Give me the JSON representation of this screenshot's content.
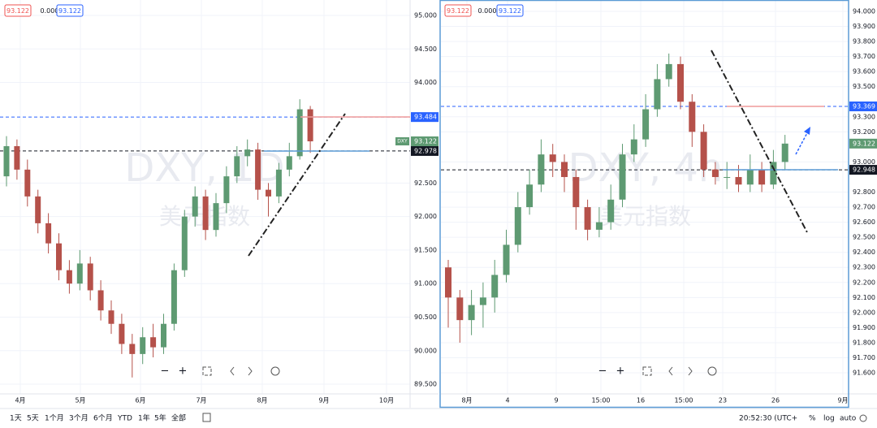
{
  "chart_data": [
    {
      "type": "candlestick",
      "title": "DXY, 1D",
      "subtitle": "美元指数",
      "header": [
        "93.122",
        "0.000",
        "93.122"
      ],
      "xlabels": [
        "4月",
        "5月",
        "6月",
        "7月",
        "8月",
        "9月",
        "10月"
      ],
      "open": [
        92.6,
        93.05,
        92.7,
        92.3,
        91.9,
        91.6,
        91.2,
        91.0,
        91.3,
        90.9,
        90.6,
        90.4,
        90.1,
        89.95,
        90.2,
        90.05,
        90.4,
        91.2,
        92.0,
        92.3,
        91.8,
        92.2,
        92.6,
        92.9,
        93.0,
        92.4,
        92.3,
        92.7,
        92.9,
        93.6
      ],
      "high": [
        93.2,
        93.15,
        92.85,
        92.4,
        92.05,
        91.75,
        91.35,
        91.5,
        91.4,
        91.05,
        90.75,
        90.55,
        90.25,
        90.35,
        90.4,
        90.55,
        91.3,
        92.1,
        92.45,
        92.4,
        92.35,
        92.75,
        93.05,
        93.15,
        93.1,
        92.5,
        92.8,
        93.1,
        93.75,
        93.65
      ],
      "low": [
        92.45,
        92.55,
        92.15,
        91.75,
        91.45,
        91.05,
        90.85,
        90.9,
        90.75,
        90.45,
        90.25,
        89.95,
        89.6,
        89.8,
        89.9,
        89.95,
        90.3,
        91.1,
        91.85,
        91.65,
        91.7,
        92.05,
        92.5,
        92.75,
        92.25,
        92.0,
        92.2,
        92.6,
        92.85,
        92.95
      ],
      "close": [
        93.05,
        92.7,
        92.3,
        91.9,
        91.6,
        91.2,
        91.0,
        91.3,
        90.9,
        90.6,
        90.4,
        90.1,
        89.95,
        90.2,
        90.05,
        90.4,
        91.2,
        92.0,
        92.3,
        91.8,
        92.2,
        92.6,
        92.9,
        93.0,
        92.4,
        92.3,
        92.7,
        92.9,
        93.6,
        93.122
      ],
      "up_color": "#5e9a72",
      "down_color": "#b5514a",
      "ylim": [
        89.355,
        95.23
      ],
      "yticks": [
        {
          "value": 95,
          "label": "95.000"
        },
        {
          "value": 94.5,
          "label": "94.500"
        },
        {
          "value": 94,
          "label": "94.000"
        },
        {
          "value": 92.5,
          "label": "92.500"
        },
        {
          "value": 92,
          "label": "92.000"
        },
        {
          "value": 91.5,
          "label": "91.500"
        },
        {
          "value": 91,
          "label": "91.000"
        },
        {
          "value": 90.5,
          "label": "90.500"
        },
        {
          "value": 90,
          "label": "90.000"
        },
        {
          "value": 89.5,
          "label": "89.500"
        }
      ],
      "price_lines": [
        {
          "value": 93.484,
          "color": "#2962ff"
        },
        {
          "value": 92.978,
          "color": "#131722"
        }
      ],
      "last_price": 93.122,
      "last_color": "#5e9a72",
      "symbol": "DXY",
      "grid": true
    },
    {
      "type": "candlestick",
      "title": "DXY, 4h",
      "subtitle": "美元指数",
      "header": [
        "93.122",
        "0.000",
        "93.122"
      ],
      "xlabels": [
        "8月",
        "4",
        "9",
        "15:00",
        "16",
        "15:00",
        "23",
        "26",
        "9月"
      ],
      "open": [
        92.3,
        92.1,
        91.95,
        92.05,
        92.1,
        92.25,
        92.45,
        92.7,
        92.85,
        93.05,
        93.0,
        92.9,
        92.7,
        92.55,
        92.6,
        92.75,
        93.05,
        93.15,
        93.35,
        93.55,
        93.65,
        93.4,
        93.2,
        92.95,
        92.9,
        92.9,
        92.85,
        92.95,
        92.85,
        93.0
      ],
      "high": [
        92.35,
        92.15,
        92.15,
        92.2,
        92.35,
        92.55,
        92.8,
        92.95,
        93.15,
        93.12,
        93.05,
        92.95,
        92.75,
        92.7,
        92.85,
        93.12,
        93.25,
        93.45,
        93.65,
        93.72,
        93.7,
        93.45,
        93.25,
        93.0,
        93.0,
        92.98,
        93.05,
        93.0,
        93.08,
        93.18
      ],
      "low": [
        91.9,
        91.8,
        91.85,
        91.9,
        92.0,
        92.2,
        92.4,
        92.65,
        92.8,
        92.9,
        92.8,
        92.55,
        92.48,
        92.5,
        92.55,
        92.7,
        93.0,
        93.1,
        93.3,
        93.5,
        93.35,
        93.1,
        92.9,
        92.85,
        92.82,
        92.8,
        92.8,
        92.8,
        92.82,
        92.95
      ],
      "close": [
        92.1,
        91.95,
        92.05,
        92.1,
        92.25,
        92.45,
        92.7,
        92.85,
        93.05,
        93.0,
        92.9,
        92.7,
        92.55,
        92.6,
        92.75,
        93.05,
        93.15,
        93.35,
        93.55,
        93.65,
        93.4,
        93.2,
        92.95,
        92.9,
        92.9,
        92.85,
        92.95,
        92.85,
        93.0,
        93.122
      ],
      "up_color": "#5e9a72",
      "down_color": "#b5514a",
      "ylim": [
        91.46,
        94.0755
      ],
      "yticks": [
        {
          "value": 94,
          "label": "94.000"
        },
        {
          "value": 93.9,
          "label": "93.900"
        },
        {
          "value": 93.8,
          "label": "93.800"
        },
        {
          "value": 93.7,
          "label": "93.700"
        },
        {
          "value": 93.6,
          "label": "93.600"
        },
        {
          "value": 93.5,
          "label": "93.500"
        },
        {
          "value": 93.3,
          "label": "93.300"
        },
        {
          "value": 93.2,
          "label": "93.200"
        },
        {
          "value": 93,
          "label": "93.000"
        },
        {
          "value": 92.8,
          "label": "92.800"
        },
        {
          "value": 92.7,
          "label": "92.700"
        },
        {
          "value": 92.6,
          "label": "92.600"
        },
        {
          "value": 92.5,
          "label": "92.500"
        },
        {
          "value": 92.4,
          "label": "92.400"
        },
        {
          "value": 92.3,
          "label": "92.300"
        },
        {
          "value": 92.2,
          "label": "92.200"
        },
        {
          "value": 92.1,
          "label": "92.100"
        },
        {
          "value": 92,
          "label": "92.000"
        },
        {
          "value": 91.9,
          "label": "91.900"
        },
        {
          "value": 91.8,
          "label": "91.800"
        },
        {
          "value": 91.7,
          "label": "91.700"
        },
        {
          "value": 91.6,
          "label": "91.600"
        }
      ],
      "price_lines": [
        {
          "value": 93.369,
          "color": "#2962ff"
        },
        {
          "value": 92.948,
          "color": "#131722"
        }
      ],
      "last_price": 93.122,
      "last_color": "#5e9a72",
      "grid": true
    }
  ],
  "controls": [
    "−",
    "+"
  ],
  "toolbar": {
    "ranges": [
      "1天",
      "5天",
      "1个月",
      "3个月",
      "6个月",
      "YTD",
      "1年",
      "5年",
      "全部"
    ],
    "clock": "20:52:30 (UTC+",
    "scale_modes": [
      "%",
      "log",
      "auto"
    ]
  }
}
